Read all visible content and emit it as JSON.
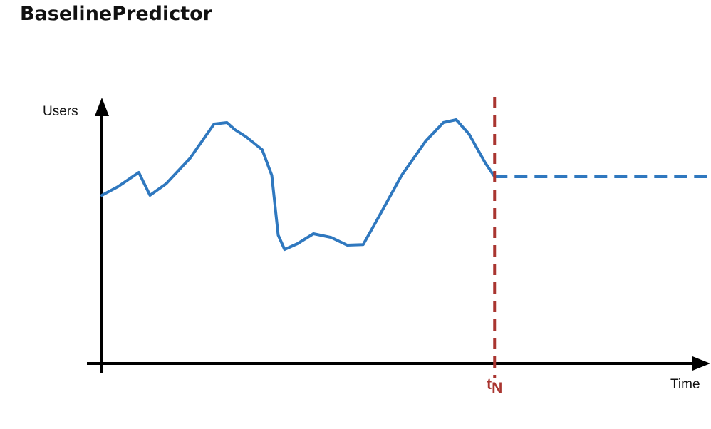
{
  "title": "BaselinePredictor",
  "chart_data": {
    "type": "line",
    "title": "BaselinePredictor",
    "xlabel": "Time",
    "ylabel": "Users",
    "grid": false,
    "legend": "none",
    "xlim": [
      0,
      38
    ],
    "ylim": [
      0,
      10
    ],
    "marker": {
      "label_main": "t",
      "label_sub": "N",
      "x": 24.5,
      "color": "#a93530"
    },
    "series": [
      {
        "style": "solid",
        "color": "#2f78bf",
        "x": [
          0,
          1,
          2.3,
          3,
          4,
          5.5,
          7,
          7.8,
          8.3,
          9.0,
          10,
          10.6,
          11,
          11.4,
          12.2,
          13.2,
          14.3,
          15.3,
          16.3,
          17.1,
          18.7,
          20.2,
          21.3,
          22.1,
          22.9,
          23.9,
          24.5
        ],
        "y": [
          5.9,
          6.2,
          6.7,
          5.9,
          6.3,
          7.2,
          8.4,
          8.45,
          8.2,
          7.95,
          7.5,
          6.6,
          4.5,
          4.0,
          4.2,
          4.55,
          4.42,
          4.15,
          4.17,
          4.97,
          6.6,
          7.8,
          8.45,
          8.55,
          8.05,
          7.05,
          6.55
        ]
      },
      {
        "style": "dashed",
        "color": "#2f78bf",
        "x": [
          24.5,
          38
        ],
        "y": [
          6.55,
          6.55
        ]
      }
    ]
  }
}
